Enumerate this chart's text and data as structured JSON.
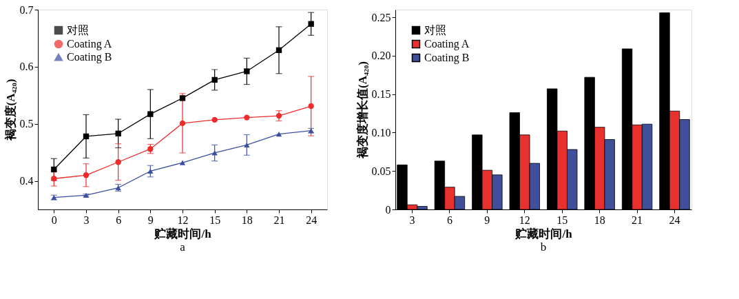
{
  "chart_data": [
    {
      "type": "line",
      "xlabel": "贮藏时间/h",
      "ylabel": "褐变度(A₄₂₀)",
      "annotations": [
        "a"
      ],
      "x": [
        0,
        3,
        6,
        9,
        12,
        15,
        18,
        21,
        24
      ],
      "xlim": [
        -1.5,
        25.5
      ],
      "xticks": [
        0,
        3,
        6,
        9,
        12,
        15,
        18,
        21,
        24
      ],
      "ylim": [
        0.35,
        0.7
      ],
      "yticks": [
        0.4,
        0.5,
        0.6,
        0.7
      ],
      "grid": false,
      "legend": "top left",
      "line_style": "solid",
      "series": [
        {
          "name": "对照",
          "color": "#000000",
          "marker": "square",
          "values": [
            0.42,
            0.478,
            0.483,
            0.517,
            0.545,
            0.577,
            0.592,
            0.629,
            0.675
          ],
          "errors": [
            0.019,
            0.038,
            0.025,
            0.043,
            null,
            0.018,
            0.023,
            0.041,
            0.02
          ]
        },
        {
          "name": "Coating A",
          "color": "#ee2a2a",
          "marker": "circle",
          "values": [
            0.404,
            0.41,
            0.433,
            0.456,
            0.501,
            0.507,
            0.511,
            0.514,
            0.531
          ],
          "errors": [
            0.013,
            0.02,
            0.032,
            0.008,
            0.052,
            null,
            null,
            0.009,
            0.052
          ]
        },
        {
          "name": "Coating B",
          "color": "#3b4fa0",
          "marker": "triangle",
          "values": [
            0.371,
            0.375,
            0.388,
            0.417,
            0.432,
            0.449,
            0.463,
            0.482,
            0.488
          ],
          "errors": [
            0.004,
            0.002,
            0.006,
            0.01,
            null,
            0.014,
            0.018,
            null,
            0.004
          ]
        }
      ]
    },
    {
      "type": "bar",
      "xlabel": "贮藏时间/h",
      "ylabel": "褐变度增长值(A₄₂₀)",
      "annotations": [
        "b"
      ],
      "categories": [
        "3",
        "6",
        "9",
        "12",
        "15",
        "18",
        "21",
        "24"
      ],
      "ylim": [
        0,
        0.26
      ],
      "yticks": [
        0,
        0.05,
        {
          "value": 0.1,
          "label": "0.10"
        },
        0.15,
        {
          "value": 0.2,
          "label": "0.20"
        },
        0.25
      ],
      "grid": false,
      "legend": "top left",
      "series": [
        {
          "name": "对照",
          "color": "#000000",
          "values": [
            0.058,
            0.063,
            0.097,
            0.126,
            0.157,
            0.172,
            0.209,
            0.256
          ]
        },
        {
          "name": "Coating A",
          "color": "#e8312f",
          "values": [
            0.006,
            0.029,
            0.051,
            0.097,
            0.102,
            0.107,
            0.11,
            0.128
          ]
        },
        {
          "name": "Coating B",
          "color": "#3f4f9a",
          "values": [
            0.004,
            0.017,
            0.045,
            0.06,
            0.078,
            0.091,
            0.111,
            0.117
          ]
        }
      ]
    }
  ]
}
